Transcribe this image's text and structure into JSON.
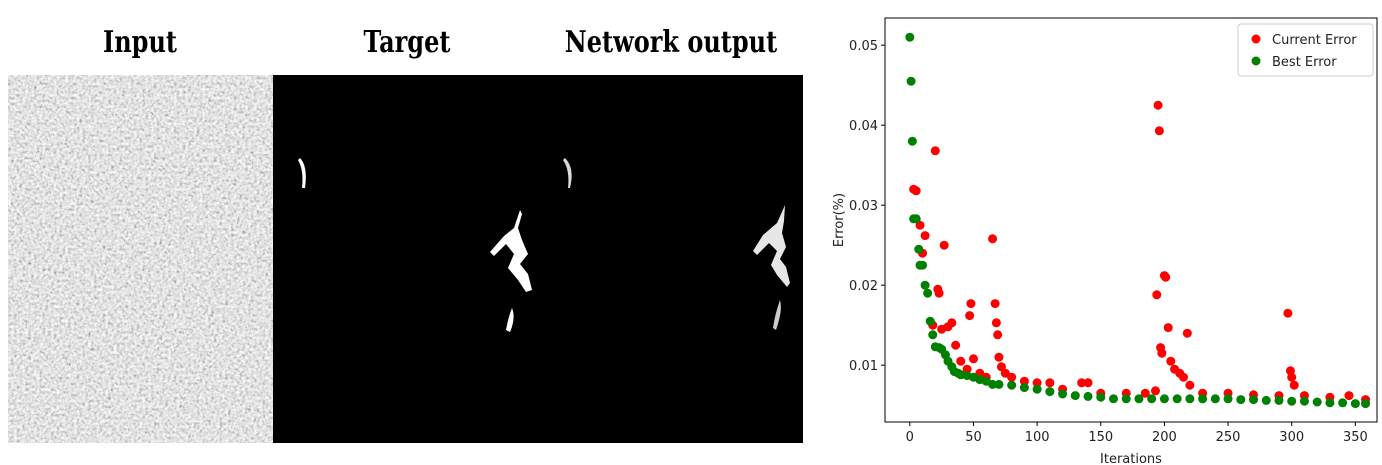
{
  "image_panel": {
    "titles": [
      "Input",
      "Target",
      "Network output"
    ]
  },
  "chart_data": {
    "type": "scatter",
    "xlabel": "Iterations",
    "ylabel": "Error(%)",
    "xlim": [
      -19.5,
      367
    ],
    "ylim": [
      0.0029,
      0.0534
    ],
    "xticks": [
      0,
      50,
      100,
      150,
      200,
      250,
      300,
      350
    ],
    "yticks": [
      0.01,
      0.02,
      0.03,
      0.04,
      0.05
    ],
    "legend": "upper right",
    "series": [
      {
        "name": "Current Error",
        "color": "#ff0000",
        "x": [
          3,
          5,
          8,
          10,
          12,
          18,
          20,
          22,
          23,
          25,
          27,
          30,
          33,
          36,
          40,
          45,
          47,
          48,
          50,
          55,
          60,
          65,
          67,
          68,
          69,
          70,
          72,
          75,
          80,
          90,
          100,
          110,
          120,
          135,
          140,
          150,
          170,
          185,
          193,
          194,
          195,
          196,
          197,
          198,
          200,
          201,
          203,
          205,
          208,
          212,
          215,
          218,
          220,
          230,
          250,
          270,
          290,
          297,
          299,
          300,
          302,
          310,
          330,
          345,
          358
        ],
        "values": [
          0.032,
          0.0318,
          0.0275,
          0.024,
          0.0262,
          0.015,
          0.0368,
          0.0195,
          0.019,
          0.0145,
          0.025,
          0.0148,
          0.0153,
          0.0125,
          0.0105,
          0.0095,
          0.0162,
          0.0177,
          0.0108,
          0.009,
          0.0085,
          0.0258,
          0.0177,
          0.0153,
          0.0138,
          0.011,
          0.0098,
          0.009,
          0.0085,
          0.008,
          0.0078,
          0.0078,
          0.007,
          0.0078,
          0.0078,
          0.0065,
          0.0065,
          0.0065,
          0.0068,
          0.0188,
          0.0425,
          0.0393,
          0.0122,
          0.0115,
          0.0212,
          0.021,
          0.0147,
          0.0105,
          0.0095,
          0.009,
          0.0085,
          0.014,
          0.0075,
          0.0065,
          0.0065,
          0.0063,
          0.0062,
          0.0165,
          0.0093,
          0.0085,
          0.0075,
          0.0062,
          0.006,
          0.0062,
          0.0057
        ]
      },
      {
        "name": "Best Error",
        "color": "#008000",
        "x": [
          0,
          1,
          2,
          3,
          5,
          7,
          8,
          10,
          12,
          14,
          16,
          18,
          20,
          23,
          25,
          28,
          30,
          33,
          35,
          38,
          40,
          45,
          50,
          55,
          60,
          65,
          70,
          80,
          90,
          100,
          110,
          120,
          130,
          140,
          150,
          160,
          170,
          180,
          190,
          200,
          210,
          220,
          230,
          240,
          250,
          260,
          270,
          280,
          290,
          300,
          310,
          320,
          330,
          340,
          350,
          358
        ],
        "values": [
          0.051,
          0.0455,
          0.038,
          0.0283,
          0.0283,
          0.0245,
          0.0225,
          0.0225,
          0.02,
          0.019,
          0.0155,
          0.0138,
          0.0123,
          0.0122,
          0.012,
          0.0113,
          0.0105,
          0.0098,
          0.0092,
          0.009,
          0.0088,
          0.0087,
          0.0085,
          0.0082,
          0.008,
          0.0076,
          0.0076,
          0.0075,
          0.0072,
          0.007,
          0.0067,
          0.0064,
          0.0062,
          0.0061,
          0.006,
          0.0058,
          0.0058,
          0.0058,
          0.0058,
          0.0058,
          0.0058,
          0.0058,
          0.0058,
          0.0058,
          0.0058,
          0.0057,
          0.0057,
          0.0056,
          0.0056,
          0.0055,
          0.0055,
          0.0054,
          0.0053,
          0.0053,
          0.0052,
          0.0052
        ]
      }
    ]
  }
}
